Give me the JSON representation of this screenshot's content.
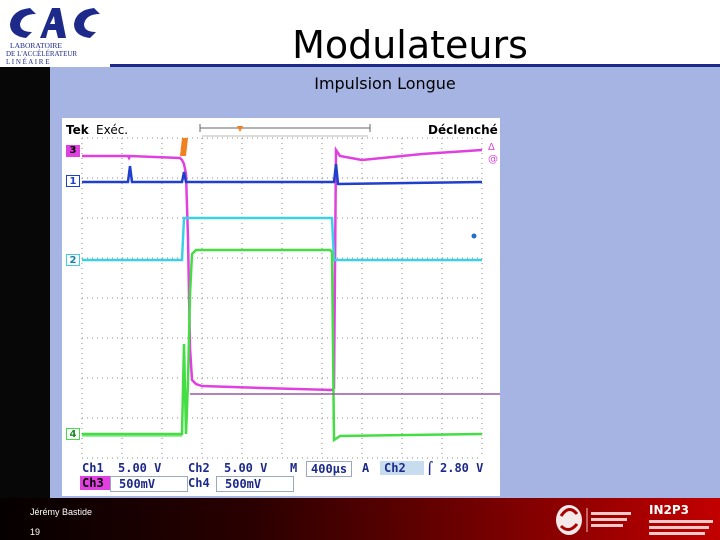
{
  "slide": {
    "title": "Modulateurs",
    "subtitle": "Impulsion Longue",
    "author": "Jérémy Bastide",
    "page_number": "19"
  },
  "logos": {
    "lab_line1": "LABORATOIRE",
    "lab_line2": "DE L'ACCÉLÉRATEUR",
    "lab_line3": "L I N É A I R E",
    "in2p3": "IN2P3"
  },
  "scope": {
    "brand": "Tek",
    "mode": "Exéc.",
    "trigger_status": "Déclenché",
    "ch_markers": [
      "3",
      "1",
      "2",
      "4"
    ],
    "readout": {
      "ch1_label": "Ch1",
      "ch1_scale": "5.00 V",
      "ch2_label": "Ch2",
      "ch2_scale": "5.00 V",
      "ch3_label": "Ch3",
      "ch3_scale": "500mV",
      "ch4_label": "Ch4",
      "ch4_scale": "500mV",
      "m_label": "M",
      "timebase": "400µs",
      "a_label": "A",
      "trig_source": "Ch2",
      "trig_level": "2.80 V"
    },
    "colors": {
      "ch1": "#1f3fcc",
      "ch2": "#3cd0e8",
      "ch3": "#e040e0",
      "ch4": "#44dd44",
      "grid": "#8a8a8a",
      "marker": "#f08020"
    }
  }
}
